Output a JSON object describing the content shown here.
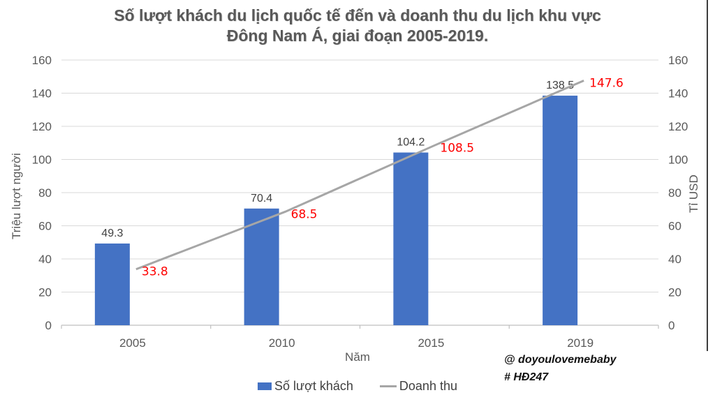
{
  "chart_data": {
    "type": "combo-bar-line",
    "title_lines": [
      "Số lượt khách du lịch quốc tế đến và doanh thu du lịch khu vực",
      "Đông Nam Á, giai đoạn 2005-2019."
    ],
    "categories": [
      "2005",
      "2010",
      "2015",
      "2019"
    ],
    "series": [
      {
        "name": "Số lượt khách",
        "type": "bar",
        "values": [
          49.3,
          70.4,
          104.2,
          138.5
        ],
        "color": "#4472C4",
        "label_color": "#404040"
      },
      {
        "name": "Doanh thu",
        "type": "line",
        "values": [
          33.8,
          68.5,
          108.5,
          147.6
        ],
        "color": "#A6A6A6",
        "label_color": "#FE0000"
      }
    ],
    "xlabel": "Năm",
    "ylabel_left": "Triệu lượt người",
    "ylabel_right": "Tỉ USD",
    "ylim": [
      0,
      160
    ],
    "ytick_step": 20,
    "grid": true,
    "legend_position": "bottom",
    "colors": {
      "grid": "#D9D9D9",
      "axis": "#BFBFBF",
      "tick_text": "#595959",
      "title_text": "#595959"
    }
  },
  "watermark": {
    "line1": "@ doyoulovemebaby",
    "line2": "# HĐ247"
  }
}
